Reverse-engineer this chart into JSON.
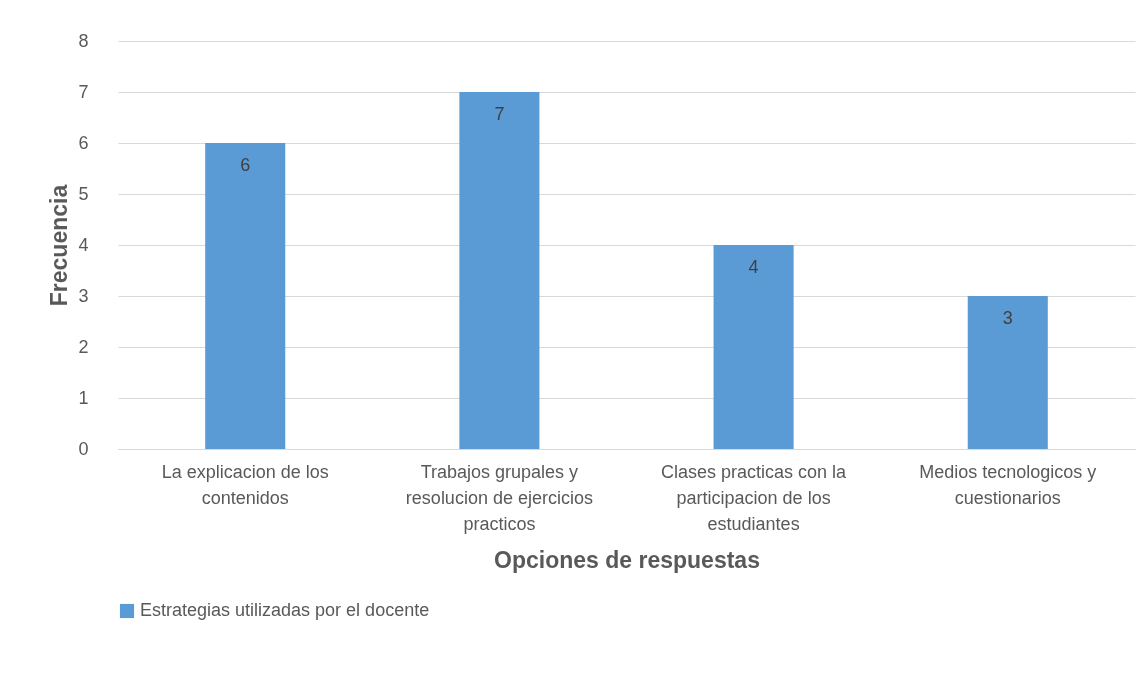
{
  "chart_data": {
    "type": "bar",
    "xlabel": "Opciones de respuestas",
    "ylabel": "Frecuencia",
    "categories": [
      "La explicacion de los contenidos",
      "Trabajos grupales y resolucion de ejercicios practicos",
      "Clases practicas con la participacion de los estudiantes",
      "Medios tecnologicos y cuestionarios"
    ],
    "series": [
      {
        "name": "Estrategias utilizadas por el docente",
        "color": "#5b9bd5",
        "values": [
          6,
          7,
          4,
          3
        ]
      }
    ],
    "ylim": [
      0,
      8
    ],
    "yticks": [
      0,
      1,
      2,
      3,
      4,
      5,
      6,
      7,
      8
    ],
    "grid": "y",
    "legend": "bottom",
    "data_labels": true
  }
}
